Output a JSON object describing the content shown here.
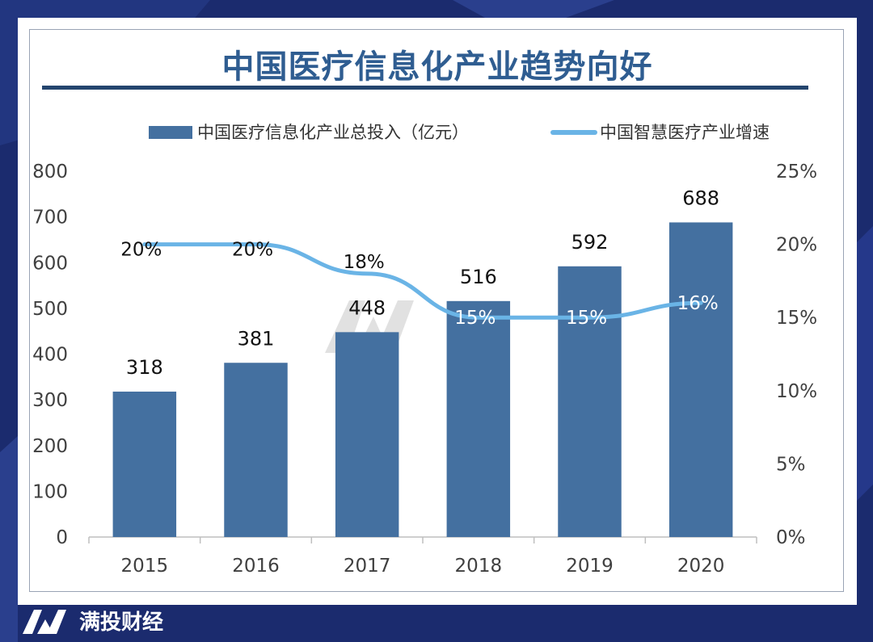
{
  "brand": {
    "name": "满投财经"
  },
  "chart_data": {
    "type": "bar+line",
    "title": "中国医疗信息化产业趋势向好",
    "categories": [
      "2015",
      "2016",
      "2017",
      "2018",
      "2019",
      "2020"
    ],
    "series": [
      {
        "name": "中国医疗信息化产业总投入（亿元）",
        "type": "bar",
        "axis": "left",
        "values": [
          318,
          381,
          448,
          516,
          592,
          688
        ],
        "labels": [
          "318",
          "381",
          "448",
          "516",
          "592",
          "688"
        ],
        "color": "#4470a0"
      },
      {
        "name": "中国智慧医疗产业增速",
        "type": "line",
        "axis": "right",
        "values": [
          20,
          20,
          18,
          15,
          15,
          16
        ],
        "labels": [
          "20%",
          "20%",
          "18%",
          "15%",
          "15%",
          "16%"
        ],
        "color": "#6ab4e6"
      }
    ],
    "y_left": {
      "min": 0,
      "max": 800,
      "ticks": [
        "0",
        "100",
        "200",
        "300",
        "400",
        "500",
        "600",
        "700",
        "800"
      ]
    },
    "y_right": {
      "min": 0,
      "max": 25,
      "ticks": [
        "0%",
        "5%",
        "10%",
        "15%",
        "20%",
        "25%"
      ]
    },
    "legend_position": "top",
    "grid": false
  }
}
